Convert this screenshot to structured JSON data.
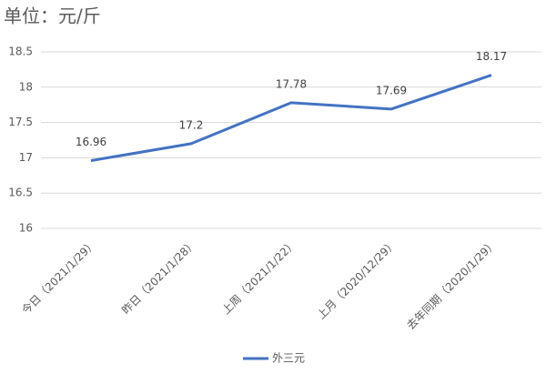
{
  "chart_data": {
    "type": "line",
    "title": "单位：元/斤",
    "categories": [
      "今日（2021/1/29）",
      "昨日（2021/1/28）",
      "上周（2021/1/22）",
      "上月（2020/12/29）",
      "去年同期（2020/1/29）"
    ],
    "series": [
      {
        "name": "外三元",
        "color": "#4472c4",
        "values": [
          16.96,
          17.2,
          17.78,
          17.69,
          18.17
        ]
      }
    ],
    "ylim": [
      16,
      18.5
    ],
    "yticks": [
      16,
      16.5,
      17,
      17.5,
      18,
      18.5
    ],
    "grid": true,
    "legend": "bottom"
  }
}
